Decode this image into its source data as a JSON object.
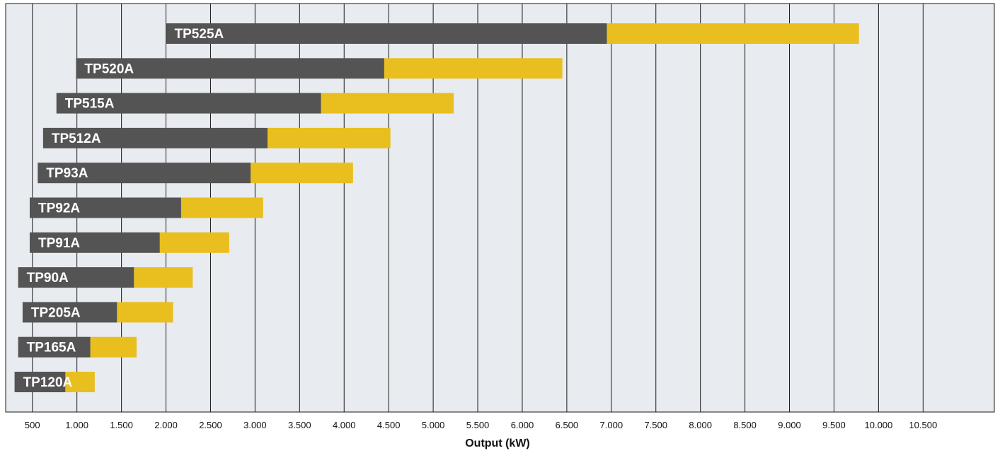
{
  "chart_data": {
    "type": "bar",
    "orientation": "horizontal",
    "stacked": true,
    "title": "",
    "xlabel": "Output (kW)",
    "ylabel": "",
    "xlim": [
      200,
      11300
    ],
    "grid": true,
    "legend": "none",
    "colors": {
      "background": "#e8ebef",
      "grid": "#1a1a1a",
      "dark": "#545454",
      "accent": "#e8bf1f"
    },
    "x_ticks": [
      500,
      1000,
      1500,
      2000,
      2500,
      3000,
      3500,
      4000,
      4500,
      5000,
      5500,
      6000,
      6500,
      7000,
      7500,
      8000,
      8500,
      9000,
      9500,
      10000,
      10500
    ],
    "x_tick_labels": [
      "500",
      "1.000",
      "1.500",
      "2.000",
      "2.500",
      "3.000",
      "3.500",
      "4.000",
      "4.500",
      "5.000",
      "5.500",
      "6.000",
      "6.500",
      "7.000",
      "7.500",
      "8.000",
      "8.500",
      "9.000",
      "9.500",
      "10.000",
      "10.500"
    ],
    "bars": [
      {
        "label": "TP525A",
        "start": 2000,
        "mid": 6950,
        "end": 9780
      },
      {
        "label": "TP520A",
        "start": 990,
        "mid": 4450,
        "end": 6450
      },
      {
        "label": "TP515A",
        "start": 770,
        "mid": 3740,
        "end": 5230
      },
      {
        "label": "TP512A",
        "start": 620,
        "mid": 3140,
        "end": 4520
      },
      {
        "label": "TP93A",
        "start": 560,
        "mid": 2950,
        "end": 4100
      },
      {
        "label": "TP92A",
        "start": 470,
        "mid": 2170,
        "end": 3090
      },
      {
        "label": "TP91A",
        "start": 470,
        "mid": 1930,
        "end": 2710
      },
      {
        "label": "TP90A",
        "start": 340,
        "mid": 1640,
        "end": 2300
      },
      {
        "label": "TP205A",
        "start": 390,
        "mid": 1450,
        "end": 2080
      },
      {
        "label": "TP165A",
        "start": 340,
        "mid": 1150,
        "end": 1670
      },
      {
        "label": "TP120A",
        "start": 300,
        "mid": 870,
        "end": 1200
      }
    ]
  }
}
